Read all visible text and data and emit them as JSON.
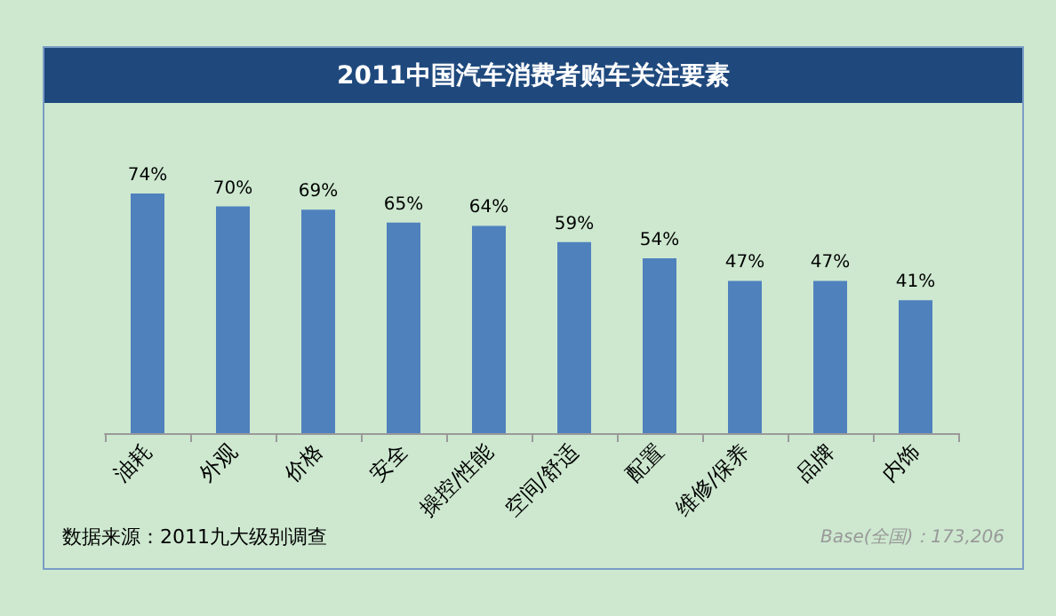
{
  "chart_data": {
    "type": "bar",
    "title": "2011中国汽车消费者购车关注要素",
    "categories": [
      "油耗",
      "外观",
      "价格",
      "安全",
      "操控/性能",
      "空间/舒适",
      "配置",
      "维修/保养",
      "品牌",
      "内饰"
    ],
    "values": [
      74,
      70,
      69,
      65,
      64,
      59,
      54,
      47,
      47,
      41
    ],
    "value_labels": [
      "74%",
      "70%",
      "69%",
      "65%",
      "64%",
      "59%",
      "54%",
      "47%",
      "47%",
      "41%"
    ],
    "color": "#4f81bd",
    "grid": false,
    "annotations": [
      "数据来源：2011九大级别调查",
      "Base(全国)：173,206"
    ]
  }
}
